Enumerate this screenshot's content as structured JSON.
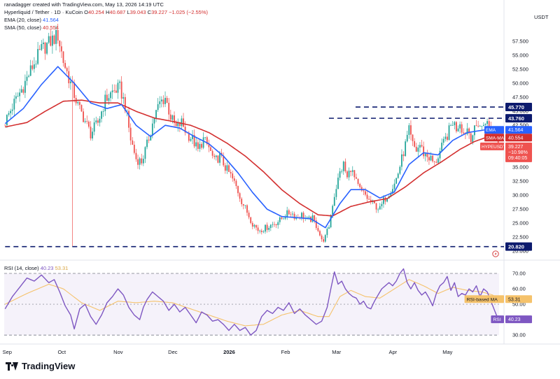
{
  "header": {
    "creator_line": "ranadagger created with TradingView.com, May 13, 2026 14:19 UTC",
    "symbol_line": "Hyperliquid / Tether · 1D · KuCoin",
    "ohlc": {
      "o_label": "O",
      "o": "40.254",
      "h_label": "H",
      "h": "40.687",
      "l_label": "L",
      "l": "39.043",
      "c_label": "C",
      "c": "39.227",
      "change": "−1.025 (−2.55%)"
    },
    "ema_label": "EMA (20, close)",
    "ema_value": "41.564",
    "sma_label": "SMA (50, close)",
    "sma_value": "40.554",
    "rsi_label": "RSI (14, close)",
    "rsi_value": "40.23",
    "rsi_ma_value": "53.31"
  },
  "currency": "USDT",
  "brand": {
    "name": "TradingView"
  },
  "colors": {
    "up": "#26a69a",
    "down": "#ef5350",
    "ema": "#2962ff",
    "sma": "#d32f2f",
    "rsi": "#7e57c2",
    "rsi_ma": "#f5c26b",
    "level": "#0d1b6e"
  },
  "chart_data": [
    {
      "type": "candlestick",
      "title": "Hyperliquid / Tether · 1D · KuCoin",
      "x_ticks": [
        "Sep",
        "Oct",
        "Nov",
        "Dec",
        "2026",
        "Feb",
        "Mar",
        "Apr",
        "May"
      ],
      "y_ticks": [
        "57.500",
        "55.000",
        "52.500",
        "50.000",
        "47.500",
        "45.000",
        "42.500",
        "37.500",
        "35.000",
        "32.500",
        "30.000",
        "27.500",
        "25.000",
        "22.500",
        "20.000"
      ],
      "ylim": [
        18.9,
        59.9
      ],
      "horizontal_levels": [
        "45.770",
        "43.760",
        "20.820"
      ],
      "series": [
        {
          "name": "EMA",
          "value": "41.564"
        },
        {
          "name": "SMA-MA",
          "value": "40.554"
        },
        {
          "name": "HYPEUSDT",
          "value": "39.227",
          "change": "−10.98%",
          "countdown": "09:40:05"
        }
      ],
      "price_path": [
        [
          0,
          43.2
        ],
        [
          5,
          46.5
        ],
        [
          10,
          49.5
        ],
        [
          15,
          53.0
        ],
        [
          20,
          56.0
        ],
        [
          25,
          57.5
        ],
        [
          29,
          58.6
        ],
        [
          32,
          54.0
        ],
        [
          36,
          50.0
        ],
        [
          40,
          46.0
        ],
        [
          43,
          44.0
        ],
        [
          47,
          41.0
        ],
        [
          51,
          43.0
        ],
        [
          55,
          47.0
        ],
        [
          59,
          48.5
        ],
        [
          63,
          49.2
        ],
        [
          66,
          46.0
        ],
        [
          69,
          40.0
        ],
        [
          72,
          36.5
        ],
        [
          75,
          36.0
        ],
        [
          78,
          39.0
        ],
        [
          82,
          44.0
        ],
        [
          85,
          46.5
        ],
        [
          88,
          47.5
        ],
        [
          91,
          44.0
        ],
        [
          94,
          42.0
        ],
        [
          97,
          43.0
        ],
        [
          100,
          41.0
        ],
        [
          103,
          40.0
        ],
        [
          106,
          38.0
        ],
        [
          109,
          40.0
        ],
        [
          112,
          38.5
        ],
        [
          115,
          36.0
        ],
        [
          118,
          37.0
        ],
        [
          121,
          35.0
        ],
        [
          124,
          33.5
        ],
        [
          127,
          31.5
        ],
        [
          130,
          29.0
        ],
        [
          133,
          27.0
        ],
        [
          136,
          25.0
        ],
        [
          139,
          23.8
        ],
        [
          142,
          24.0
        ],
        [
          145,
          24.5
        ],
        [
          148,
          25.0
        ],
        [
          151,
          25.5
        ],
        [
          154,
          26.5
        ],
        [
          157,
          27.0
        ],
        [
          160,
          26.0
        ],
        [
          163,
          26.5
        ],
        [
          166,
          25.5
        ],
        [
          169,
          25.8
        ],
        [
          172,
          24.0
        ],
        [
          174,
          21.8
        ],
        [
          176,
          22.5
        ],
        [
          178,
          24.5
        ],
        [
          180,
          28.5
        ],
        [
          182,
          31.5
        ],
        [
          184,
          34.0
        ],
        [
          186,
          35.5
        ],
        [
          188,
          33.0
        ],
        [
          190,
          35.0
        ],
        [
          192,
          33.0
        ],
        [
          194,
          31.5
        ],
        [
          196,
          30.5
        ],
        [
          198,
          30.0
        ],
        [
          200,
          29.0
        ],
        [
          202,
          28.5
        ],
        [
          204,
          28.0
        ],
        [
          206,
          27.5
        ],
        [
          208,
          29.0
        ],
        [
          210,
          30.0
        ],
        [
          212,
          31.0
        ],
        [
          214,
          32.0
        ],
        [
          216,
          34.0
        ],
        [
          218,
          36.5
        ],
        [
          220,
          39.0
        ],
        [
          222,
          41.5
        ],
        [
          224,
          39.0
        ],
        [
          226,
          38.0
        ],
        [
          228,
          39.0
        ],
        [
          230,
          37.5
        ],
        [
          232,
          37.0
        ],
        [
          234,
          36.5
        ],
        [
          236,
          35.5
        ],
        [
          238,
          37.0
        ],
        [
          240,
          38.5
        ],
        [
          242,
          40.0
        ],
        [
          244,
          41.5
        ],
        [
          246,
          43.2
        ],
        [
          248,
          42.0
        ],
        [
          250,
          43.2
        ],
        [
          252,
          41.0
        ],
        [
          254,
          42.0
        ],
        [
          256,
          40.5
        ],
        [
          258,
          41.5
        ],
        [
          260,
          43.0
        ],
        [
          262,
          42.0
        ],
        [
          264,
          43.5
        ],
        [
          266,
          42.0
        ],
        [
          268,
          41.0
        ],
        [
          270,
          40.6
        ],
        [
          271,
          39.23
        ]
      ],
      "ema_20": [
        [
          0,
          42.8
        ],
        [
          10,
          45.5
        ],
        [
          20,
          49.8
        ],
        [
          29,
          53.0
        ],
        [
          38,
          50.0
        ],
        [
          47,
          46.5
        ],
        [
          56,
          45.5
        ],
        [
          64,
          46.2
        ],
        [
          72,
          42.5
        ],
        [
          80,
          40.5
        ],
        [
          88,
          42.5
        ],
        [
          96,
          42.0
        ],
        [
          104,
          40.5
        ],
        [
          112,
          39.2
        ],
        [
          120,
          37.0
        ],
        [
          128,
          34.0
        ],
        [
          136,
          30.5
        ],
        [
          144,
          27.5
        ],
        [
          152,
          26.2
        ],
        [
          160,
          26.0
        ],
        [
          168,
          25.8
        ],
        [
          176,
          24.2
        ],
        [
          184,
          28.5
        ],
        [
          190,
          31.0
        ],
        [
          198,
          31.0
        ],
        [
          206,
          29.5
        ],
        [
          214,
          30.6
        ],
        [
          222,
          35.5
        ],
        [
          230,
          37.6
        ],
        [
          238,
          37.2
        ],
        [
          246,
          39.8
        ],
        [
          254,
          41.2
        ],
        [
          262,
          41.6
        ],
        [
          268,
          41.9
        ],
        [
          271,
          41.56
        ]
      ],
      "sma_50": [
        [
          0,
          42.2
        ],
        [
          12,
          43.0
        ],
        [
          22,
          45.0
        ],
        [
          32,
          46.8
        ],
        [
          42,
          47.0
        ],
        [
          52,
          46.5
        ],
        [
          62,
          46.5
        ],
        [
          72,
          45.0
        ],
        [
          82,
          43.8
        ],
        [
          92,
          43.2
        ],
        [
          102,
          42.5
        ],
        [
          112,
          41.2
        ],
        [
          122,
          39.3
        ],
        [
          132,
          37.0
        ],
        [
          142,
          34.2
        ],
        [
          152,
          31.0
        ],
        [
          162,
          28.5
        ],
        [
          172,
          26.5
        ],
        [
          180,
          26.3
        ],
        [
          190,
          28.0
        ],
        [
          200,
          28.8
        ],
        [
          210,
          29.4
        ],
        [
          220,
          31.5
        ],
        [
          230,
          34.0
        ],
        [
          240,
          36.0
        ],
        [
          250,
          38.2
        ],
        [
          258,
          39.6
        ],
        [
          264,
          40.3
        ],
        [
          268,
          40.5
        ],
        [
          271,
          40.55
        ]
      ],
      "wick_spikes": [
        {
          "bar": 37,
          "low": 20.9
        }
      ]
    },
    {
      "type": "line",
      "title": "RSI (14, close)",
      "y_ticks": [
        "70.00",
        "60.00",
        "50.00",
        "40.00",
        "30.00"
      ],
      "ylim": [
        26.0,
        75.0
      ],
      "band": [
        30,
        70
      ],
      "series": [
        {
          "name": "RSI",
          "value": "40.23",
          "values": [
            [
              0,
              47
            ],
            [
              4,
              55
            ],
            [
              8,
              61
            ],
            [
              12,
              67
            ],
            [
              16,
              65
            ],
            [
              20,
              69
            ],
            [
              24,
              64
            ],
            [
              27,
              66
            ],
            [
              30,
              58
            ],
            [
              33,
              49
            ],
            [
              36,
              43
            ],
            [
              38,
              34
            ],
            [
              41,
              47
            ],
            [
              44,
              50
            ],
            [
              47,
              42
            ],
            [
              50,
              37
            ],
            [
              53,
              43
            ],
            [
              56,
              51
            ],
            [
              59,
              55
            ],
            [
              62,
              60
            ],
            [
              65,
              56
            ],
            [
              68,
              48
            ],
            [
              71,
              43
            ],
            [
              74,
              40
            ],
            [
              76,
              48
            ],
            [
              78,
              53
            ],
            [
              81,
              58
            ],
            [
              84,
              55
            ],
            [
              87,
              52
            ],
            [
              90,
              46
            ],
            [
              93,
              50
            ],
            [
              96,
              45
            ],
            [
              99,
              48
            ],
            [
              102,
              43
            ],
            [
              105,
              38
            ],
            [
              108,
              45
            ],
            [
              111,
              43
            ],
            [
              114,
              39
            ],
            [
              117,
              40
            ],
            [
              120,
              37
            ],
            [
              123,
              33
            ],
            [
              126,
              37
            ],
            [
              129,
              33
            ],
            [
              132,
              35
            ],
            [
              135,
              30
            ],
            [
              138,
              33
            ],
            [
              141,
              42
            ],
            [
              144,
              46
            ],
            [
              147,
              44
            ],
            [
              150,
              48
            ],
            [
              153,
              46
            ],
            [
              156,
              51
            ],
            [
              159,
              44
            ],
            [
              162,
              47
            ],
            [
              165,
              43
            ],
            [
              168,
              40
            ],
            [
              171,
              37
            ],
            [
              174,
              39
            ],
            [
              177,
              48
            ],
            [
              179,
              60
            ],
            [
              181,
              71
            ],
            [
              183,
              63
            ],
            [
              185,
              65
            ],
            [
              187,
              60
            ],
            [
              189,
              57
            ],
            [
              191,
              55
            ],
            [
              193,
              54
            ],
            [
              195,
              50
            ],
            [
              197,
              52
            ],
            [
              199,
              48
            ],
            [
              201,
              47
            ],
            [
              203,
              52
            ],
            [
              205,
              56
            ],
            [
              207,
              60
            ],
            [
              209,
              62
            ],
            [
              211,
              64
            ],
            [
              213,
              62
            ],
            [
              215,
              65
            ],
            [
              217,
              70
            ],
            [
              219,
              73
            ],
            [
              221,
              64
            ],
            [
              223,
              60
            ],
            [
              225,
              64
            ],
            [
              227,
              59
            ],
            [
              229,
              56
            ],
            [
              231,
              58
            ],
            [
              233,
              54
            ],
            [
              235,
              49
            ],
            [
              237,
              57
            ],
            [
              239,
              62
            ],
            [
              241,
              64
            ],
            [
              243,
              68
            ],
            [
              245,
              59
            ],
            [
              247,
              64
            ],
            [
              249,
              55
            ],
            [
              251,
              57
            ],
            [
              253,
              56
            ],
            [
              255,
              60
            ],
            [
              257,
              58
            ],
            [
              259,
              62
            ],
            [
              261,
              55
            ],
            [
              263,
              60
            ],
            [
              265,
              58
            ],
            [
              267,
              52
            ],
            [
              269,
              46
            ],
            [
              271,
              40.23
            ]
          ]
        },
        {
          "name": "RSI-based MA",
          "value": "53.31",
          "values": [
            [
              0,
              50
            ],
            [
              12,
              57
            ],
            [
              24,
              63
            ],
            [
              32,
              60
            ],
            [
              42,
              51
            ],
            [
              52,
              46
            ],
            [
              62,
              52
            ],
            [
              72,
              51
            ],
            [
              82,
              52
            ],
            [
              92,
              51
            ],
            [
              102,
              47
            ],
            [
              112,
              43
            ],
            [
              122,
              39
            ],
            [
              132,
              36
            ],
            [
              142,
              37
            ],
            [
              152,
              43
            ],
            [
              162,
              46
            ],
            [
              172,
              42
            ],
            [
              178,
              42
            ],
            [
              184,
              55
            ],
            [
              190,
              59
            ],
            [
              198,
              55
            ],
            [
              206,
              54
            ],
            [
              214,
              60
            ],
            [
              222,
              66
            ],
            [
              230,
              62
            ],
            [
              238,
              57
            ],
            [
              246,
              61
            ],
            [
              254,
              59
            ],
            [
              262,
              58
            ],
            [
              268,
              56
            ],
            [
              271,
              53.31
            ]
          ]
        }
      ]
    }
  ]
}
